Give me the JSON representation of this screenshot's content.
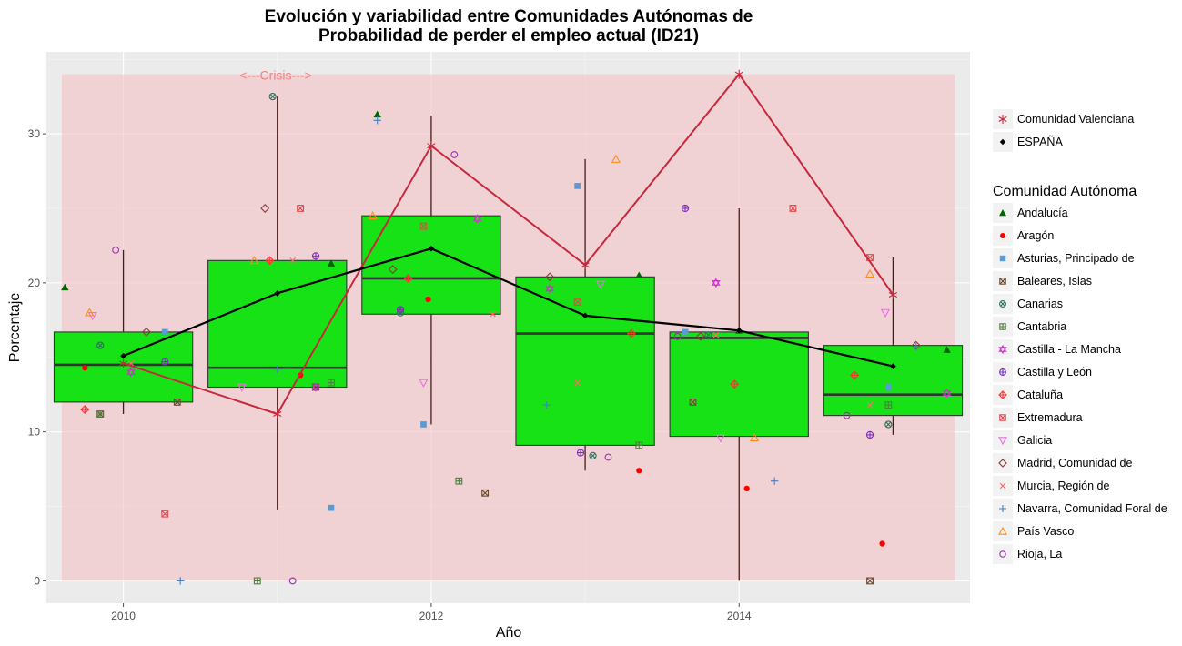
{
  "chart_data": {
    "type": "boxplot",
    "title": "Evolución y variabilidad entre Comunidades Autónomas de",
    "subtitle": "Probabilidad de perder el empleo actual (ID21)",
    "xlabel": "Año",
    "ylabel": "Porcentaje",
    "xlim": [
      2009.5,
      2015.5
    ],
    "ylim": [
      -1.5,
      35.5
    ],
    "x_ticks": [
      2010,
      2012,
      2014
    ],
    "y_ticks": [
      0,
      10,
      20,
      30
    ],
    "grid": true,
    "legend_position": "right",
    "crisis_band": {
      "x0": 2009.6,
      "x1": 2015.4,
      "y0": 0,
      "y1": 34,
      "label": "<---Crisis--->",
      "color": "#f4c2c5"
    },
    "boxes": [
      {
        "x": 2010,
        "min": 11.2,
        "q1": 12.0,
        "median": 14.5,
        "q3": 16.7,
        "max": 22.2
      },
      {
        "x": 2011,
        "min": 4.8,
        "q1": 13.0,
        "median": 14.3,
        "q3": 21.5,
        "max": 32.5
      },
      {
        "x": 2012,
        "min": 10.5,
        "q1": 17.9,
        "median": 20.3,
        "q3": 24.5,
        "max": 31.2
      },
      {
        "x": 2013,
        "min": 7.4,
        "q1": 9.1,
        "median": 16.6,
        "q3": 20.4,
        "max": 28.3
      },
      {
        "x": 2014,
        "min": 0.0,
        "q1": 9.7,
        "median": 16.3,
        "q3": 16.7,
        "max": 25.0
      },
      {
        "x": 2015,
        "min": 9.8,
        "q1": 11.1,
        "median": 12.5,
        "q3": 15.8,
        "max": 21.7
      }
    ],
    "box_fill": "#16e216",
    "lines": [
      {
        "name": "Comunidad Valenciana",
        "color": "#c8283c",
        "marker": "asterisk",
        "x": [
          2010,
          2011,
          2012,
          2013,
          2014,
          2015
        ],
        "y": [
          14.6,
          11.2,
          29.2,
          21.2,
          34.0,
          19.2
        ]
      },
      {
        "name": "ESPAÑA",
        "color": "#000000",
        "marker": "diamond-filled",
        "x": [
          2010,
          2011,
          2012,
          2013,
          2014,
          2015
        ],
        "y": [
          15.1,
          19.3,
          22.3,
          17.8,
          16.8,
          14.4
        ]
      }
    ],
    "legend_title": "Comunidad Autónoma",
    "series": [
      {
        "name": "Andalucía",
        "color": "#006400",
        "marker": "triangle-filled",
        "points": [
          [
            2009.62,
            19.7
          ],
          [
            2011.35,
            21.3
          ],
          [
            2011.65,
            31.3
          ],
          [
            2013.35,
            20.5
          ],
          [
            2014.0,
            16.8
          ],
          [
            2015.35,
            15.5
          ]
        ]
      },
      {
        "name": "Aragón",
        "color": "#ff0000",
        "marker": "circle-filled",
        "points": [
          [
            2009.75,
            14.3
          ],
          [
            2011.15,
            13.8
          ],
          [
            2011.98,
            18.9
          ],
          [
            2013.35,
            7.4
          ],
          [
            2014.05,
            6.2
          ],
          [
            2014.93,
            2.5
          ]
        ]
      },
      {
        "name": "Asturias, Principado de",
        "color": "#5b9bd5",
        "marker": "square-filled",
        "points": [
          [
            2010.27,
            16.7
          ],
          [
            2011.35,
            4.9
          ],
          [
            2011.95,
            10.5
          ],
          [
            2012.95,
            26.5
          ],
          [
            2013.65,
            16.7
          ],
          [
            2014.97,
            13.0
          ]
        ]
      },
      {
        "name": "Baleares, Islas",
        "color": "#6b4a2e",
        "marker": "square-x",
        "points": [
          [
            2009.85,
            11.2
          ],
          [
            2010.35,
            12.0
          ],
          [
            2011.25,
            13.0
          ],
          [
            2012.35,
            5.9
          ],
          [
            2013.7,
            12.0
          ],
          [
            2014.85,
            0.0
          ]
        ]
      },
      {
        "name": "Canarias",
        "color": "#2f6f5f",
        "marker": "circle-x",
        "points": [
          [
            2009.85,
            15.8
          ],
          [
            2010.97,
            32.5
          ],
          [
            2011.8,
            18.0
          ],
          [
            2013.05,
            8.4
          ],
          [
            2013.8,
            16.5
          ],
          [
            2014.97,
            10.5
          ]
        ]
      },
      {
        "name": "Cantabria",
        "color": "#4f7f3f",
        "marker": "square-plus",
        "points": [
          [
            2009.85,
            11.2
          ],
          [
            2010.87,
            0.0
          ],
          [
            2011.35,
            13.3
          ],
          [
            2012.18,
            6.7
          ],
          [
            2013.35,
            9.1
          ],
          [
            2014.97,
            11.8
          ]
        ]
      },
      {
        "name": "Castilla - La Mancha",
        "color": "#cc33cc",
        "marker": "star-of-david",
        "points": [
          [
            2010.05,
            14.0
          ],
          [
            2011.25,
            13.0
          ],
          [
            2012.3,
            24.3
          ],
          [
            2012.77,
            19.6
          ],
          [
            2013.85,
            20.0
          ],
          [
            2015.35,
            12.6
          ]
        ]
      },
      {
        "name": "Castilla y León",
        "color": "#7f2fbf",
        "marker": "circle-plus",
        "points": [
          [
            2010.27,
            14.7
          ],
          [
            2011.25,
            21.8
          ],
          [
            2011.8,
            18.2
          ],
          [
            2012.97,
            8.6
          ],
          [
            2013.65,
            25.0
          ],
          [
            2014.85,
            9.8
          ]
        ]
      },
      {
        "name": "Cataluña",
        "color": "#ff3030",
        "marker": "diamond-plus",
        "points": [
          [
            2009.75,
            11.5
          ],
          [
            2010.95,
            21.5
          ],
          [
            2011.85,
            20.3
          ],
          [
            2013.3,
            16.6
          ],
          [
            2013.97,
            13.2
          ],
          [
            2014.75,
            13.8
          ]
        ]
      },
      {
        "name": "Extremadura",
        "color": "#e5484d",
        "marker": "square-x",
        "points": [
          [
            2010.27,
            4.5
          ],
          [
            2011.15,
            25.0
          ],
          [
            2011.95,
            23.8
          ],
          [
            2012.95,
            18.7
          ],
          [
            2014.35,
            25.0
          ],
          [
            2014.85,
            21.7
          ]
        ]
      },
      {
        "name": "Galicia",
        "color": "#ee6ee0",
        "marker": "triangle-down",
        "points": [
          [
            2009.8,
            17.8
          ],
          [
            2010.77,
            13.0
          ],
          [
            2011.95,
            13.3
          ],
          [
            2013.1,
            19.9
          ],
          [
            2013.88,
            9.6
          ],
          [
            2014.95,
            18.0
          ]
        ]
      },
      {
        "name": "Madrid, Comunidad de",
        "color": "#8b3a3a",
        "marker": "diamond",
        "points": [
          [
            2010.15,
            16.7
          ],
          [
            2010.92,
            25.0
          ],
          [
            2011.75,
            20.9
          ],
          [
            2012.77,
            20.4
          ],
          [
            2013.75,
            16.4
          ],
          [
            2015.15,
            15.8
          ]
        ]
      },
      {
        "name": "Murcia, Región de",
        "color": "#ff6b6b",
        "marker": "x",
        "points": [
          [
            2010.05,
            14.6
          ],
          [
            2011.1,
            21.5
          ],
          [
            2012.4,
            17.9
          ],
          [
            2012.95,
            13.3
          ],
          [
            2013.85,
            16.5
          ],
          [
            2014.85,
            11.8
          ]
        ]
      },
      {
        "name": "Navarra, Comunidad Foral de",
        "color": "#4a7fbf",
        "marker": "plus",
        "points": [
          [
            2010.37,
            0.0
          ],
          [
            2011.0,
            14.2
          ],
          [
            2011.65,
            30.9
          ],
          [
            2012.75,
            11.8
          ],
          [
            2014.23,
            6.7
          ],
          [
            2015.15,
            15.7
          ]
        ]
      },
      {
        "name": "País Vasco",
        "color": "#ff8c1a",
        "marker": "triangle",
        "points": [
          [
            2009.78,
            18.0
          ],
          [
            2010.85,
            21.5
          ],
          [
            2011.62,
            24.5
          ],
          [
            2013.2,
            28.3
          ],
          [
            2014.1,
            9.6
          ],
          [
            2014.85,
            20.6
          ]
        ]
      },
      {
        "name": "Rioja, La",
        "color": "#9b30b0",
        "marker": "circle",
        "points": [
          [
            2009.95,
            22.2
          ],
          [
            2011.1,
            0.0
          ],
          [
            2012.15,
            28.6
          ],
          [
            2013.15,
            8.3
          ],
          [
            2013.6,
            16.4
          ],
          [
            2014.7,
            11.1
          ]
        ]
      }
    ]
  }
}
